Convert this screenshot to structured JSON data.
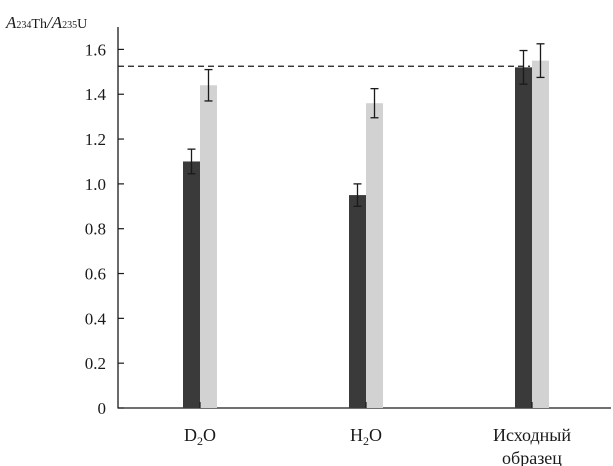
{
  "chart_data": {
    "type": "bar",
    "ylabel": {
      "A1": "A",
      "sup1": "234",
      "el1": "Th",
      "slash": "/",
      "A2": "A",
      "sup2": "235",
      "el2": "U"
    },
    "ylim": [
      0,
      1.7
    ],
    "yticks": [
      "0",
      "0.2",
      "0.4",
      "0.6",
      "0.8",
      "1.0",
      "1.2",
      "1.4",
      "1.6"
    ],
    "categories": [
      {
        "lines": [
          [
            {
              "t": "D"
            },
            {
              "t": "2",
              "sub": true
            },
            {
              "t": "O"
            }
          ]
        ]
      },
      {
        "lines": [
          [
            {
              "t": "H"
            },
            {
              "t": "2",
              "sub": true
            },
            {
              "t": "O"
            }
          ]
        ]
      },
      {
        "lines": [
          [
            {
              "t": "Исходный"
            }
          ],
          [
            {
              "t": "образец"
            }
          ]
        ]
      }
    ],
    "series": [
      {
        "color": "#3a3a3a",
        "values": [
          1.1,
          0.95,
          1.52
        ],
        "errors": [
          0.055,
          0.05,
          0.075
        ]
      },
      {
        "color": "#d2d2d2",
        "values": [
          1.44,
          1.36,
          1.55
        ],
        "errors": [
          0.07,
          0.065,
          0.075
        ]
      }
    ],
    "reference_line": {
      "y": 1.525,
      "style": "dashed"
    },
    "grid": false
  }
}
